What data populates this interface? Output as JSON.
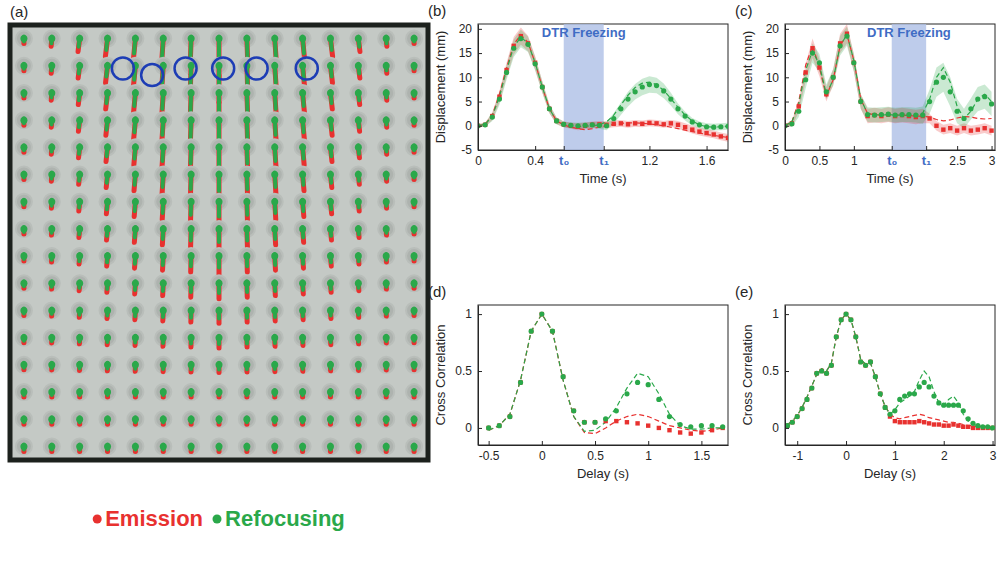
{
  "chart_data": [
    {
      "type": "image",
      "label": "(a)",
      "legend": "bottom",
      "series": [
        {
          "name": "Emission",
          "color": "#e8312f"
        },
        {
          "name": "Refocusing",
          "color": "#2aa84a"
        }
      ]
    },
    {
      "type": "line",
      "label": "(b)",
      "title": "DTR Freezing",
      "shaded_span": [
        0.6,
        0.88
      ],
      "x_label": "Time (s)",
      "y_label": "Displacement (mm)",
      "xlim": [
        0,
        1.75
      ],
      "ylim": [
        -5,
        21
      ],
      "xticks": [
        0,
        0.4,
        {
          "value": 0.6,
          "label": "t₀"
        },
        {
          "value": 0.88,
          "label": "t₁"
        },
        1.2,
        1.6
      ],
      "yticks": [
        -5,
        0,
        5,
        10,
        15,
        20
      ],
      "x": [
        0,
        0.05,
        0.1,
        0.15,
        0.2,
        0.25,
        0.3,
        0.35,
        0.4,
        0.45,
        0.5,
        0.55,
        0.6,
        0.65,
        0.7,
        0.75,
        0.8,
        0.85,
        0.9,
        0.95,
        1,
        1.05,
        1.1,
        1.15,
        1.2,
        1.25,
        1.3,
        1.35,
        1.4,
        1.45,
        1.5,
        1.55,
        1.6,
        1.65,
        1.7,
        1.75
      ],
      "series": [
        {
          "color": "#e8312f",
          "marker": "square",
          "line_style": "dashed",
          "values": [
            0,
            0.2,
            2,
            6,
            11.5,
            16.5,
            18.5,
            17,
            13,
            8,
            3.5,
            1,
            0.3,
            0,
            -0.2,
            0,
            0.2,
            0.3,
            0.2,
            0.4,
            0.5,
            0.3,
            0.5,
            0.4,
            0.6,
            0.5,
            0.3,
            0.5,
            0.2,
            -0.3,
            -0.8,
            -1.2,
            -1.5,
            -1.8,
            -2.2,
            -2.5
          ],
          "fit": [
            0,
            0.3,
            2.2,
            6.5,
            12,
            16.8,
            18.8,
            17.2,
            13,
            8,
            3.5,
            1,
            0.2,
            -0.3,
            -0.6,
            -0.8,
            -0.6,
            -0.3,
            0,
            0.3,
            0.5,
            0.6,
            0.6,
            0.5,
            0.4,
            0.2,
            0,
            -0.3,
            -0.6,
            -0.9,
            -1.2,
            -1.5,
            -1.8,
            -2,
            -2.2,
            -2.4
          ],
          "error": [
            0.3,
            0.4,
            0.8,
            1.2,
            1.5,
            1.8,
            1.8,
            1.6,
            1.4,
            1.2,
            0.9,
            0.7,
            0.6,
            0.6,
            0.7,
            0.7,
            0.7,
            0.7,
            0.7,
            0.7,
            0.7,
            0.7,
            0.7,
            0.7,
            0.7,
            0.7,
            0.7,
            0.7,
            0.8,
            0.8,
            0.8,
            0.8,
            0.8,
            0.8,
            0.8,
            0.8
          ]
        },
        {
          "color": "#2aa84a",
          "marker": "circle",
          "line_style": "dashed",
          "values": [
            0,
            0.2,
            1.8,
            5.5,
            11,
            16,
            18,
            16.8,
            12.8,
            8,
            3.5,
            1,
            0.3,
            0.1,
            0,
            0.1,
            0.2,
            0.1,
            0,
            1.5,
            3.5,
            5.5,
            7,
            8,
            8.5,
            8.3,
            7.2,
            5.5,
            3.5,
            2,
            0.8,
            0.2,
            -0.2,
            -0.3,
            -0.2,
            -0.1
          ],
          "fit": [
            0,
            0.3,
            2,
            6,
            11.5,
            16.3,
            18.3,
            17,
            13,
            8,
            3.5,
            1,
            0.2,
            -0.1,
            -0.2,
            -0.1,
            0,
            0.2,
            0.8,
            2.2,
            4.3,
            6.3,
            7.9,
            8.8,
            9,
            8.5,
            7.3,
            5.6,
            3.8,
            2.2,
            1,
            0.2,
            -0.2,
            -0.3,
            -0.2,
            -0.1
          ],
          "error": [
            0.3,
            0.4,
            0.8,
            1.2,
            1.5,
            1.8,
            1.8,
            1.6,
            1.4,
            1.2,
            0.9,
            0.7,
            0.6,
            0.6,
            0.6,
            0.6,
            0.6,
            0.7,
            0.9,
            1.1,
            1.3,
            1.5,
            1.6,
            1.7,
            1.7,
            1.6,
            1.5,
            1.3,
            1.1,
            0.9,
            0.8,
            0.7,
            0.7,
            0.7,
            0.7,
            0.7
          ]
        }
      ]
    },
    {
      "type": "line",
      "label": "(c)",
      "title": "DTR Freezing",
      "shaded_span": [
        1.55,
        2.05
      ],
      "x_label": "Time (s)",
      "y_label": "Displacement (mm)",
      "xlim": [
        0,
        3.05
      ],
      "ylim": [
        -5,
        21
      ],
      "xticks": [
        0,
        0.5,
        1,
        {
          "value": 1.55,
          "label": "t₀"
        },
        {
          "value": 2.05,
          "label": "t₁"
        },
        2.5,
        3
      ],
      "yticks": [
        -5,
        0,
        5,
        10,
        15,
        20
      ],
      "x": [
        0,
        0.1,
        0.2,
        0.3,
        0.4,
        0.5,
        0.6,
        0.7,
        0.8,
        0.9,
        1,
        1.1,
        1.2,
        1.3,
        1.4,
        1.5,
        1.6,
        1.7,
        1.8,
        1.9,
        2,
        2.1,
        2.2,
        2.3,
        2.4,
        2.5,
        2.6,
        2.7,
        2.8,
        2.9,
        3
      ],
      "series": [
        {
          "color": "#e8312f",
          "marker": "square",
          "line_style": "dashed",
          "values": [
            0,
            0.5,
            4,
            11,
            16,
            12,
            6.5,
            10,
            17,
            19,
            13,
            5,
            2,
            2.2,
            2,
            2.3,
            2,
            2.2,
            2,
            1.8,
            2,
            1.5,
            0,
            -0.8,
            -0.5,
            -1,
            -0.5,
            -1,
            -0.8,
            -0.5,
            -1
          ],
          "fit": [
            0,
            0.8,
            5,
            12.5,
            16.5,
            12,
            6.2,
            9.5,
            16.5,
            18.8,
            13.5,
            5.5,
            2.5,
            2.3,
            2.2,
            2.3,
            2.2,
            2.2,
            2.1,
            2,
            2,
            1.8,
            1.3,
            1,
            1.2,
            1.6,
            1.9,
            1.8,
            1.5,
            1.4,
            1.5
          ],
          "error": [
            0.3,
            0.6,
            1.2,
            1.8,
            2,
            1.8,
            1.5,
            1.7,
            2,
            2,
            1.8,
            1.5,
            1.5,
            1.5,
            1.5,
            1.5,
            1.5,
            1.5,
            1.5,
            1.5,
            1.5,
            1,
            1,
            1,
            1,
            1,
            1,
            1,
            1,
            1,
            1
          ]
        },
        {
          "color": "#2aa84a",
          "marker": "circle",
          "line_style": "dashed",
          "values": [
            0,
            0.4,
            3,
            9.5,
            15,
            13,
            7,
            10,
            16.5,
            18.5,
            13,
            5,
            2.3,
            2.2,
            2.3,
            2.4,
            2.2,
            2.3,
            2.3,
            2.2,
            2.2,
            5,
            9,
            10,
            7,
            3,
            1.5,
            3.5,
            5.5,
            6,
            4.5
          ],
          "fit": [
            0,
            0.8,
            4.5,
            11.5,
            15.5,
            12.5,
            6.5,
            9.5,
            16.5,
            18.8,
            13.5,
            5.5,
            2.5,
            2.3,
            2.2,
            2.3,
            2.2,
            2.2,
            2.1,
            2.2,
            2.6,
            5.5,
            10,
            12,
            9,
            4,
            1.5,
            3,
            5.5,
            6.5,
            5
          ],
          "error": [
            0.3,
            0.6,
            1.2,
            1.8,
            2,
            1.8,
            1.5,
            1.7,
            2,
            2,
            1.8,
            1.5,
            1.5,
            1.5,
            1.5,
            1.5,
            1.5,
            1.5,
            1.5,
            1.5,
            1.8,
            2.5,
            3,
            3,
            3,
            2.5,
            2,
            2.2,
            2.5,
            2.5,
            2.5
          ]
        }
      ]
    },
    {
      "type": "line",
      "label": "(d)",
      "x_label": "Delay (s)",
      "y_label": "Cross Correlation",
      "xlim": [
        -0.6,
        1.75
      ],
      "ylim": [
        -0.15,
        1.08
      ],
      "xticks": [
        -0.5,
        0,
        0.5,
        1,
        1.5
      ],
      "yticks": [
        0,
        0.5,
        1
      ],
      "x": [
        -0.5,
        -0.4,
        -0.3,
        -0.2,
        -0.1,
        0,
        0.1,
        0.2,
        0.3,
        0.4,
        0.5,
        0.6,
        0.7,
        0.8,
        0.9,
        1,
        1.1,
        1.2,
        1.3,
        1.4,
        1.5,
        1.6,
        1.7
      ],
      "series": [
        {
          "color": "#e8312f",
          "marker": "square",
          "line_style": "dashed",
          "values": [
            0,
            0.02,
            0.1,
            0.4,
            0.85,
            1,
            0.85,
            0.45,
            0.15,
            0.05,
            0.05,
            0.06,
            0.06,
            0.05,
            0.04,
            0.02,
            0,
            -0.02,
            -0.04,
            -0.05,
            -0.04,
            -0.02,
            0
          ],
          "fit": [
            -0.02,
            0.02,
            0.12,
            0.42,
            0.85,
            1,
            0.85,
            0.42,
            0.1,
            -0.04,
            -0.05,
            0,
            0.06,
            0.1,
            0.12,
            0.1,
            0.06,
            0.02,
            0,
            -0.02,
            -0.03,
            -0.02,
            0
          ]
        },
        {
          "color": "#2aa84a",
          "marker": "circle",
          "line_style": "dashed",
          "values": [
            0,
            0.02,
            0.1,
            0.4,
            0.85,
            1,
            0.85,
            0.45,
            0.15,
            0.05,
            0.05,
            0.08,
            0.15,
            0.3,
            0.4,
            0.38,
            0.25,
            0.1,
            0.03,
            0.01,
            0.02,
            0.02,
            0.01
          ],
          "fit": [
            -0.02,
            0.02,
            0.12,
            0.42,
            0.85,
            1,
            0.85,
            0.42,
            0.1,
            -0.03,
            -0.02,
            0.05,
            0.18,
            0.35,
            0.48,
            0.45,
            0.3,
            0.12,
            0.02,
            -0.01,
            -0.01,
            0,
            0
          ]
        }
      ]
    },
    {
      "type": "line",
      "label": "(e)",
      "x_label": "Delay (s)",
      "y_label": "Cross Correlation",
      "xlim": [
        -1.25,
        3.05
      ],
      "ylim": [
        -0.15,
        1.08
      ],
      "xticks": [
        -1,
        0,
        1,
        2,
        3
      ],
      "yticks": [
        0,
        0.5,
        1
      ],
      "x": [
        -1.2,
        -1.1,
        -1,
        -0.9,
        -0.8,
        -0.7,
        -0.6,
        -0.5,
        -0.4,
        -0.3,
        -0.2,
        -0.1,
        0,
        0.1,
        0.2,
        0.3,
        0.4,
        0.5,
        0.6,
        0.7,
        0.8,
        0.9,
        1,
        1.1,
        1.2,
        1.3,
        1.4,
        1.5,
        1.6,
        1.7,
        1.8,
        1.9,
        2,
        2.1,
        2.2,
        2.3,
        2.4,
        2.5,
        2.6,
        2.7,
        2.8,
        2.9,
        3
      ],
      "series": [
        {
          "color": "#e8312f",
          "marker": "square",
          "line_style": "dashed",
          "values": [
            0.02,
            0.05,
            0.1,
            0.17,
            0.25,
            0.35,
            0.48,
            0.5,
            0.48,
            0.55,
            0.8,
            0.95,
            1,
            0.95,
            0.8,
            0.58,
            0.55,
            0.58,
            0.45,
            0.3,
            0.18,
            0.1,
            0.06,
            0.05,
            0.05,
            0.05,
            0.05,
            0.06,
            0.05,
            0.04,
            0.03,
            0.03,
            0.02,
            0.02,
            0.03,
            0.02,
            0.01,
            0.01,
            0,
            0,
            0,
            0,
            0
          ],
          "fit": [
            0.03,
            0.06,
            0.11,
            0.18,
            0.27,
            0.37,
            0.47,
            0.52,
            0.5,
            0.57,
            0.8,
            0.95,
            1,
            0.95,
            0.8,
            0.6,
            0.56,
            0.57,
            0.45,
            0.3,
            0.19,
            0.12,
            0.09,
            0.08,
            0.09,
            0.1,
            0.11,
            0.12,
            0.11,
            0.09,
            0.08,
            0.07,
            0.06,
            0.05,
            0.05,
            0.04,
            0.03,
            0.02,
            0.02,
            0.01,
            0.01,
            0.01,
            0
          ]
        },
        {
          "color": "#2aa84a",
          "marker": "circle",
          "line_style": "dashed",
          "values": [
            0.02,
            0.05,
            0.1,
            0.17,
            0.25,
            0.35,
            0.48,
            0.5,
            0.48,
            0.55,
            0.8,
            0.95,
            1,
            0.95,
            0.8,
            0.58,
            0.55,
            0.58,
            0.45,
            0.3,
            0.18,
            0.12,
            0.15,
            0.25,
            0.28,
            0.3,
            0.3,
            0.36,
            0.4,
            0.36,
            0.28,
            0.22,
            0.2,
            0.2,
            0.2,
            0.2,
            0.15,
            0.08,
            0.04,
            0.02,
            0.01,
            0.01,
            0
          ],
          "fit": [
            0.03,
            0.06,
            0.11,
            0.18,
            0.27,
            0.37,
            0.47,
            0.52,
            0.5,
            0.57,
            0.8,
            0.95,
            1,
            0.95,
            0.8,
            0.6,
            0.56,
            0.57,
            0.45,
            0.3,
            0.19,
            0.12,
            0.16,
            0.22,
            0.25,
            0.28,
            0.32,
            0.42,
            0.5,
            0.45,
            0.32,
            0.22,
            0.2,
            0.25,
            0.28,
            0.22,
            0.12,
            0.06,
            0.03,
            0.02,
            0.01,
            0.01,
            0
          ]
        }
      ]
    }
  ]
}
